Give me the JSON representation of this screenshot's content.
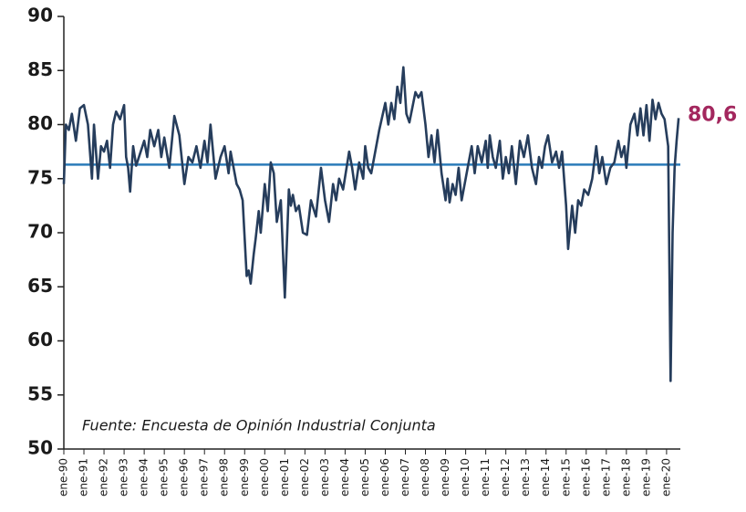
{
  "chart_data": {
    "type": "line",
    "note": "Fuente: Encuesta de Opinión Industrial Conjunta",
    "end_label": "80,6",
    "end_label_color": "#a3275e",
    "reference_line": 76.3,
    "reference_color": "#2b7bb9",
    "x": [
      1990.0,
      1990.1,
      1990.25,
      1990.4,
      1990.6,
      1990.8,
      1991.0,
      1991.2,
      1991.4,
      1991.5,
      1991.7,
      1991.85,
      1992.0,
      1992.15,
      1992.3,
      1992.45,
      1992.6,
      1992.8,
      1993.0,
      1993.1,
      1993.2,
      1993.3,
      1993.45,
      1993.6,
      1994.0,
      1994.15,
      1994.3,
      1994.5,
      1994.7,
      1994.85,
      1995.0,
      1995.25,
      1995.5,
      1995.75,
      1996.0,
      1996.2,
      1996.4,
      1996.6,
      1996.8,
      1997.0,
      1997.15,
      1997.3,
      1997.55,
      1997.8,
      1998.0,
      1998.2,
      1998.3,
      1998.6,
      1998.75,
      1998.9,
      1999.1,
      1999.2,
      1999.3,
      1999.45,
      1999.55,
      1999.7,
      1999.8,
      2000.0,
      2000.15,
      2000.3,
      2000.45,
      2000.6,
      2000.8,
      2001.0,
      2001.2,
      2001.3,
      2001.4,
      2001.55,
      2001.7,
      2001.9,
      2002.1,
      2002.3,
      2002.55,
      2002.8,
      2003.0,
      2003.2,
      2003.4,
      2003.55,
      2003.7,
      2003.9,
      2004.2,
      2004.35,
      2004.5,
      2004.7,
      2004.9,
      2005.0,
      2005.15,
      2005.3,
      2005.5,
      2005.7,
      2006.0,
      2006.15,
      2006.3,
      2006.45,
      2006.6,
      2006.75,
      2006.9,
      2007.05,
      2007.2,
      2007.5,
      2007.65,
      2007.8,
      2008.0,
      2008.15,
      2008.3,
      2008.45,
      2008.6,
      2008.8,
      2009.0,
      2009.1,
      2009.2,
      2009.35,
      2009.5,
      2009.65,
      2009.8,
      2010.1,
      2010.2,
      2010.3,
      2010.45,
      2010.6,
      2010.8,
      2011.0,
      2011.1,
      2011.2,
      2011.35,
      2011.5,
      2011.7,
      2011.85,
      2012.0,
      2012.15,
      2012.3,
      2012.5,
      2012.7,
      2012.9,
      2013.1,
      2013.3,
      2013.5,
      2013.65,
      2013.8,
      2013.95,
      2014.1,
      2014.3,
      2014.5,
      2014.65,
      2014.8,
      2015.0,
      2015.1,
      2015.3,
      2015.45,
      2015.6,
      2015.75,
      2015.9,
      2016.1,
      2016.3,
      2016.5,
      2016.65,
      2016.8,
      2017.0,
      2017.2,
      2017.4,
      2017.6,
      2017.75,
      2017.9,
      2018.0,
      2018.2,
      2018.4,
      2018.55,
      2018.7,
      2018.85,
      2019.0,
      2019.15,
      2019.3,
      2019.45,
      2019.6,
      2019.75,
      2019.9,
      2020.08,
      2020.2,
      2020.3,
      2020.4,
      2020.5,
      2020.6
    ],
    "values": [
      74.5,
      80,
      79.5,
      81,
      78.5,
      81.5,
      81.8,
      80,
      75,
      80,
      75,
      78,
      77.5,
      78.5,
      76,
      80,
      81.2,
      80.5,
      81.8,
      77,
      76,
      73.8,
      78,
      76.2,
      78.5,
      77,
      79.5,
      78,
      79.5,
      77,
      78.8,
      76,
      80.8,
      79,
      74.5,
      77,
      76.5,
      78,
      76,
      78.5,
      76.5,
      80,
      75,
      77,
      78,
      75.5,
      77.5,
      74.5,
      74,
      73,
      66,
      66.5,
      65.3,
      68,
      69.5,
      72,
      70,
      74.5,
      72,
      76.5,
      75.5,
      71,
      73,
      64,
      74,
      72.5,
      73.5,
      72,
      72.5,
      70,
      69.8,
      73,
      71.5,
      76,
      73,
      71,
      74.5,
      73,
      75,
      74,
      77.5,
      76,
      74,
      76.5,
      75,
      78,
      76,
      75.5,
      77.5,
      79.5,
      82,
      80,
      82,
      80.5,
      83.5,
      82,
      85.3,
      81,
      80.2,
      83,
      82.5,
      83,
      80,
      77,
      79,
      76.5,
      79.5,
      75.5,
      73,
      75,
      72.8,
      74.5,
      73.5,
      76,
      73,
      76,
      77,
      78,
      75.5,
      78,
      76.5,
      78.5,
      76,
      79,
      77,
      76,
      78.5,
      75,
      77,
      75.5,
      78,
      74.5,
      78.5,
      77,
      79,
      76,
      74.5,
      77,
      76,
      78,
      79,
      76.5,
      77.5,
      76,
      77.5,
      72.5,
      68.5,
      72.5,
      70,
      73,
      72.5,
      74,
      73.5,
      75,
      78,
      75.5,
      77,
      74.5,
      76,
      76.5,
      78.5,
      77,
      78,
      76,
      80,
      81,
      79,
      81.5,
      79,
      81.8,
      78.5,
      82.3,
      80.5,
      82,
      81,
      80.5,
      78,
      56.3,
      70,
      76,
      78.5,
      80.6
    ],
    "color": "#263d5c",
    "xlim": [
      1990,
      2021
    ],
    "xticks": [
      {
        "value": 1990,
        "label": "ene-90"
      },
      {
        "value": 1991,
        "label": "ene-91"
      },
      {
        "value": 1992,
        "label": "ene-92"
      },
      {
        "value": 1993,
        "label": "ene-93"
      },
      {
        "value": 1994,
        "label": "ene-94"
      },
      {
        "value": 1995,
        "label": "ene-95"
      },
      {
        "value": 1996,
        "label": "ene-96"
      },
      {
        "value": 1997,
        "label": "ene-97"
      },
      {
        "value": 1998,
        "label": "ene-98"
      },
      {
        "value": 1999,
        "label": "ene-99"
      },
      {
        "value": 2000,
        "label": "ene-00"
      },
      {
        "value": 2001,
        "label": "ene-01"
      },
      {
        "value": 2002,
        "label": "ene-02"
      },
      {
        "value": 2003,
        "label": "ene-03"
      },
      {
        "value": 2004,
        "label": "ene-04"
      },
      {
        "value": 2005,
        "label": "ene-05"
      },
      {
        "value": 2006,
        "label": "ene-06"
      },
      {
        "value": 2007,
        "label": "ene-07"
      },
      {
        "value": 2008,
        "label": "ene-08"
      },
      {
        "value": 2009,
        "label": "ene-09"
      },
      {
        "value": 2010,
        "label": "ene-10"
      },
      {
        "value": 2011,
        "label": "ene-11"
      },
      {
        "value": 2012,
        "label": "ene-12"
      },
      {
        "value": 2013,
        "label": "ene-13"
      },
      {
        "value": 2014,
        "label": "ene-14"
      },
      {
        "value": 2015,
        "label": "ene-15"
      },
      {
        "value": 2016,
        "label": "ene-16"
      },
      {
        "value": 2017,
        "label": "ene-17"
      },
      {
        "value": 2018,
        "label": "ene-18"
      },
      {
        "value": 2019,
        "label": "ene-19"
      },
      {
        "value": 2020,
        "label": "ene-20"
      }
    ],
    "ylim": [
      50,
      90
    ],
    "yticks": [
      50,
      55,
      60,
      65,
      70,
      75,
      80,
      85,
      90
    ],
    "grid": false
  }
}
